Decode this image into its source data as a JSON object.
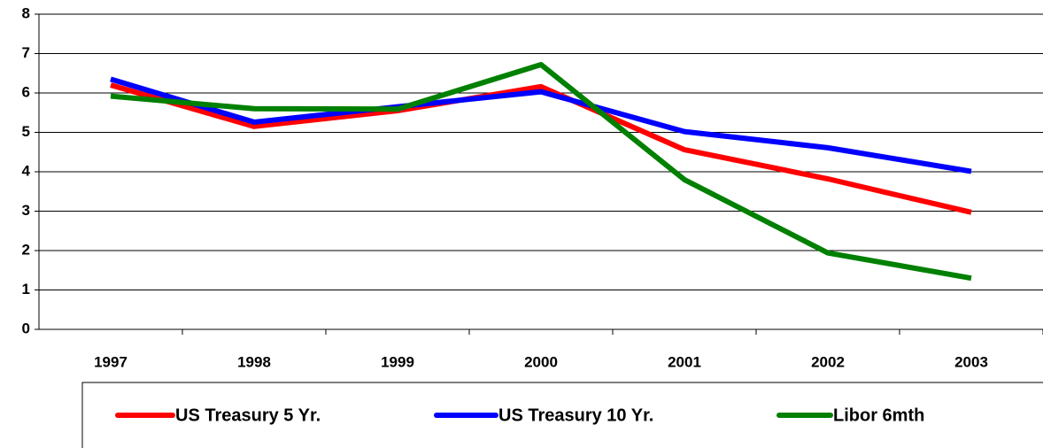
{
  "chart_data": {
    "type": "line",
    "categories": [
      "1997",
      "1998",
      "1999",
      "2000",
      "2001",
      "2002",
      "2003"
    ],
    "series": [
      {
        "name": "US Treasury 5 Yr.",
        "color": "#ff0000",
        "values": [
          6.2,
          5.15,
          5.55,
          6.16,
          4.56,
          3.82,
          2.97
        ]
      },
      {
        "name": "US Treasury 10 Yr.",
        "color": "#0000ff",
        "values": [
          6.35,
          5.26,
          5.65,
          6.03,
          5.02,
          4.61,
          4.01
        ]
      },
      {
        "name": "Libor 6mth",
        "color": "#008000",
        "values": [
          5.92,
          5.6,
          5.59,
          6.72,
          3.8,
          1.94,
          1.3
        ]
      }
    ],
    "ylim": [
      0,
      8
    ],
    "yticks": [
      0,
      1,
      2,
      3,
      4,
      5,
      6,
      7,
      8
    ],
    "grid": true,
    "legend": "bottom"
  }
}
